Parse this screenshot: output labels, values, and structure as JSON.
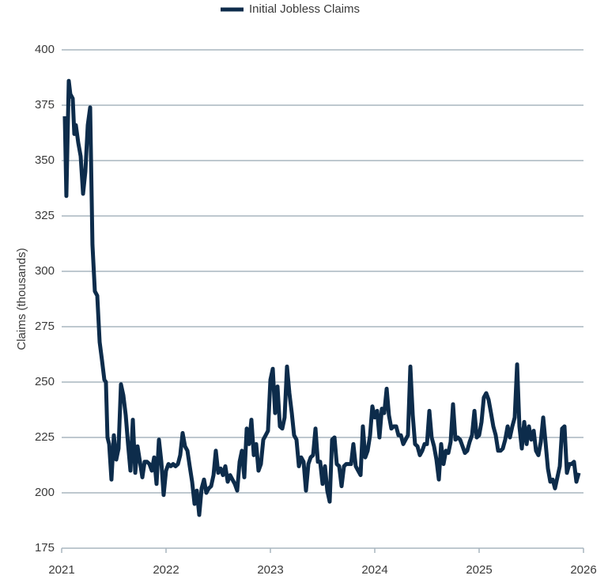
{
  "chart_data": {
    "type": "line",
    "y_label": "Claims (thousands)",
    "x": [
      2021.03,
      2021.045,
      2021.068,
      2021.083,
      2021.106,
      2021.121,
      2021.136,
      2021.159,
      2021.182,
      2021.205,
      2021.227,
      2021.25,
      2021.273,
      2021.295,
      2021.318,
      2021.341,
      2021.364,
      2021.386,
      2021.409,
      2021.424,
      2021.439,
      2021.455,
      2021.477,
      2021.5,
      2021.523,
      2021.545,
      2021.568,
      2021.591,
      2021.614,
      2021.636,
      2021.659,
      2021.682,
      2021.705,
      2021.727,
      2021.75,
      2021.773,
      2021.795,
      2021.818,
      2021.841,
      2021.864,
      2021.886,
      2021.909,
      2021.932,
      2021.955,
      2021.977,
      2022.0,
      2022.023,
      2022.045,
      2022.068,
      2022.091,
      2022.114,
      2022.136,
      2022.159,
      2022.182,
      2022.205,
      2022.227,
      2022.25,
      2022.273,
      2022.295,
      2022.318,
      2022.341,
      2022.364,
      2022.386,
      2022.409,
      2022.432,
      2022.455,
      2022.477,
      2022.5,
      2022.523,
      2022.545,
      2022.568,
      2022.591,
      2022.614,
      2022.636,
      2022.659,
      2022.682,
      2022.705,
      2022.727,
      2022.75,
      2022.773,
      2022.795,
      2022.818,
      2022.841,
      2022.864,
      2022.886,
      2022.909,
      2022.932,
      2022.955,
      2022.977,
      2023.0,
      2023.023,
      2023.045,
      2023.068,
      2023.091,
      2023.114,
      2023.136,
      2023.159,
      2023.182,
      2023.205,
      2023.227,
      2023.25,
      2023.273,
      2023.295,
      2023.318,
      2023.341,
      2023.364,
      2023.386,
      2023.409,
      2023.432,
      2023.455,
      2023.477,
      2023.5,
      2023.523,
      2023.545,
      2023.568,
      2023.591,
      2023.614,
      2023.636,
      2023.659,
      2023.682,
      2023.705,
      2023.727,
      2023.75,
      2023.773,
      2023.795,
      2023.818,
      2023.841,
      2023.864,
      2023.886,
      2023.909,
      2023.932,
      2023.955,
      2023.977,
      2024.0,
      2024.023,
      2024.045,
      2024.068,
      2024.091,
      2024.114,
      2024.136,
      2024.159,
      2024.182,
      2024.205,
      2024.227,
      2024.25,
      2024.273,
      2024.295,
      2024.318,
      2024.341,
      2024.364,
      2024.386,
      2024.409,
      2024.432,
      2024.455,
      2024.477,
      2024.5,
      2024.523,
      2024.545,
      2024.568,
      2024.591,
      2024.614,
      2024.636,
      2024.659,
      2024.682,
      2024.705,
      2024.727,
      2024.75,
      2024.773,
      2024.795,
      2024.818,
      2024.841,
      2024.864,
      2024.886,
      2024.909,
      2024.932,
      2024.955,
      2024.977,
      2025.0,
      2025.023,
      2025.045,
      2025.068,
      2025.091,
      2025.114,
      2025.136,
      2025.159,
      2025.182,
      2025.205,
      2025.227,
      2025.25,
      2025.273,
      2025.295,
      2025.318,
      2025.341,
      2025.364,
      2025.386,
      2025.409,
      2025.432,
      2025.455,
      2025.477,
      2025.5,
      2025.523,
      2025.545,
      2025.568,
      2025.591,
      2025.614,
      2025.636,
      2025.659,
      2025.682,
      2025.705,
      2025.727,
      2025.75,
      2025.773,
      2025.795,
      2025.818,
      2025.841,
      2025.864,
      2025.886,
      2025.909,
      2025.932,
      2025.955
    ],
    "series": [
      {
        "name": "Initial Jobless Claims",
        "color": "#0d2c4b",
        "values": [
          370,
          334,
          386,
          380,
          378,
          362,
          366,
          358,
          352,
          335,
          345,
          366,
          374,
          312,
          291,
          289,
          268,
          260,
          251,
          250,
          225,
          222,
          206,
          226,
          215,
          220,
          249,
          244,
          235,
          222,
          210,
          233,
          209,
          221,
          214,
          207,
          214,
          214,
          213,
          210,
          216,
          204,
          224,
          214,
          199,
          210,
          213,
          212,
          213,
          212,
          213,
          217,
          227,
          221,
          219,
          212,
          205,
          195,
          201,
          190,
          202,
          206,
          200,
          202,
          203,
          208,
          219,
          209,
          211,
          208,
          212,
          205,
          208,
          206,
          204,
          201,
          214,
          219,
          207,
          229,
          222,
          233,
          217,
          222,
          210,
          213,
          224,
          226,
          228,
          251,
          256,
          236,
          248,
          230,
          229,
          234,
          257,
          245,
          236,
          226,
          224,
          212,
          216,
          214,
          201,
          213,
          216,
          217,
          229,
          214,
          214,
          204,
          212,
          201,
          196,
          224,
          225,
          213,
          212,
          203,
          212,
          213,
          213,
          213,
          222,
          212,
          210,
          208,
          230,
          216,
          219,
          226,
          239,
          234,
          237,
          225,
          238,
          236,
          247,
          235,
          229,
          230,
          230,
          226,
          226,
          222,
          224,
          226,
          257,
          235,
          222,
          221,
          217,
          219,
          222,
          222,
          237,
          225,
          221,
          215,
          206,
          222,
          213,
          219,
          218,
          223,
          240,
          224,
          225,
          224,
          221,
          218,
          219,
          223,
          226,
          237,
          225,
          226,
          232,
          243,
          245,
          242,
          236,
          230,
          226,
          219,
          219,
          220,
          224,
          230,
          225,
          230,
          234,
          258,
          230,
          220,
          232,
          222,
          230,
          224,
          228,
          219,
          217,
          223,
          234,
          223,
          211,
          205,
          206,
          202,
          207,
          212,
          229,
          230,
          209,
          213,
          213,
          214,
          205,
          209
        ]
      }
    ],
    "xlim": [
      2021,
      2026
    ],
    "xticks": [
      2021,
      2022,
      2023,
      2024,
      2025,
      2026
    ],
    "ylim": [
      175,
      400
    ],
    "yticks": [
      175,
      200,
      225,
      250,
      275,
      300,
      325,
      350,
      375,
      400
    ],
    "grid": true,
    "legend": "top"
  }
}
